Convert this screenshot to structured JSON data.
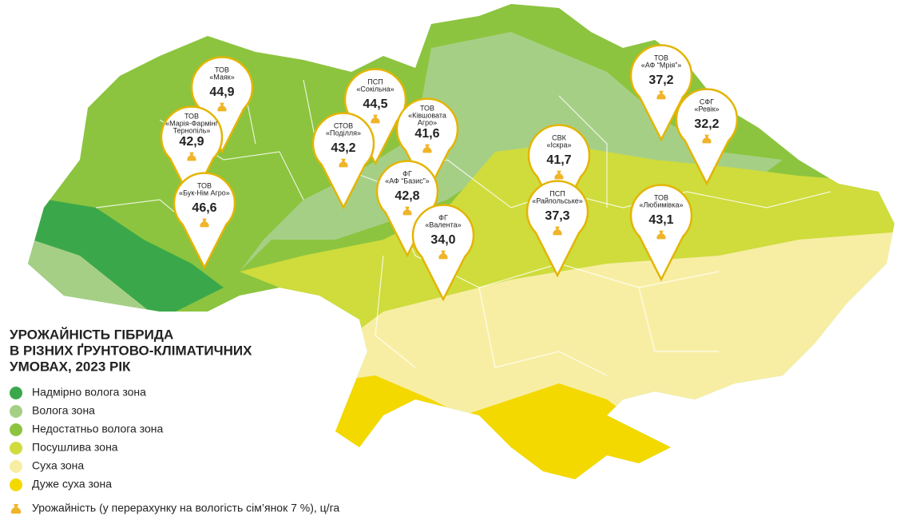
{
  "map": {
    "title_lines": [
      "УРОЖАЙНІСТЬ ГІБРИДА",
      "В РІЗНИХ ҐРУНТОВО-КЛІМАТИЧНИХ",
      "УМОВАХ, 2023 РІК"
    ],
    "zones": [
      {
        "label": "Надмірно волога зона",
        "color": "#3aa84a"
      },
      {
        "label": "Волога зона",
        "color": "#a6cf86"
      },
      {
        "label": "Недостатньо волога зона",
        "color": "#8cc43f"
      },
      {
        "label": "Посушлива зона",
        "color": "#cfdc3c"
      },
      {
        "label": "Суха зона",
        "color": "#f8eea3"
      },
      {
        "label": "Дуже суха зона",
        "color": "#f3d900"
      }
    ],
    "yield_note": "Урожайність (у перерахунку на вологість сім’янок 7 %), ц/га",
    "pins": [
      {
        "org": "ТОВ",
        "name": [
          "«Маяк»"
        ],
        "value": "44,9"
      },
      {
        "org": "ТОВ",
        "name": [
          "«Марія-Фармінг",
          "Тернопіль»"
        ],
        "value": "42,9"
      },
      {
        "org": "ТОВ",
        "name": [
          "«Бук-Нім Агро»"
        ],
        "value": "46,6"
      },
      {
        "org": "ПСП",
        "name": [
          "«Сокільна»"
        ],
        "value": "44,5"
      },
      {
        "org": "ТОВ",
        "name": [
          "«Ківшовата",
          "Агро»"
        ],
        "value": "41,6"
      },
      {
        "org": "СТОВ",
        "name": [
          "«Поділля»"
        ],
        "value": "43,2"
      },
      {
        "org": "ФГ",
        "name": [
          "«АФ “Базис”»"
        ],
        "value": "42,8"
      },
      {
        "org": "ФГ",
        "name": [
          "«Валента»"
        ],
        "value": "34,0"
      },
      {
        "org": "СВК",
        "name": [
          "«Іскра»"
        ],
        "value": "41,7"
      },
      {
        "org": "ПСП",
        "name": [
          "«Райпольське»"
        ],
        "value": "37,3"
      },
      {
        "org": "ТОВ",
        "name": [
          "«АФ “Мрія”»"
        ],
        "value": "37,2"
      },
      {
        "org": "СФГ",
        "name": [
          "«Ревік»"
        ],
        "value": "32,2"
      },
      {
        "org": "ТОВ",
        "name": [
          "«Любимівка»"
        ],
        "value": "43,1"
      }
    ]
  }
}
